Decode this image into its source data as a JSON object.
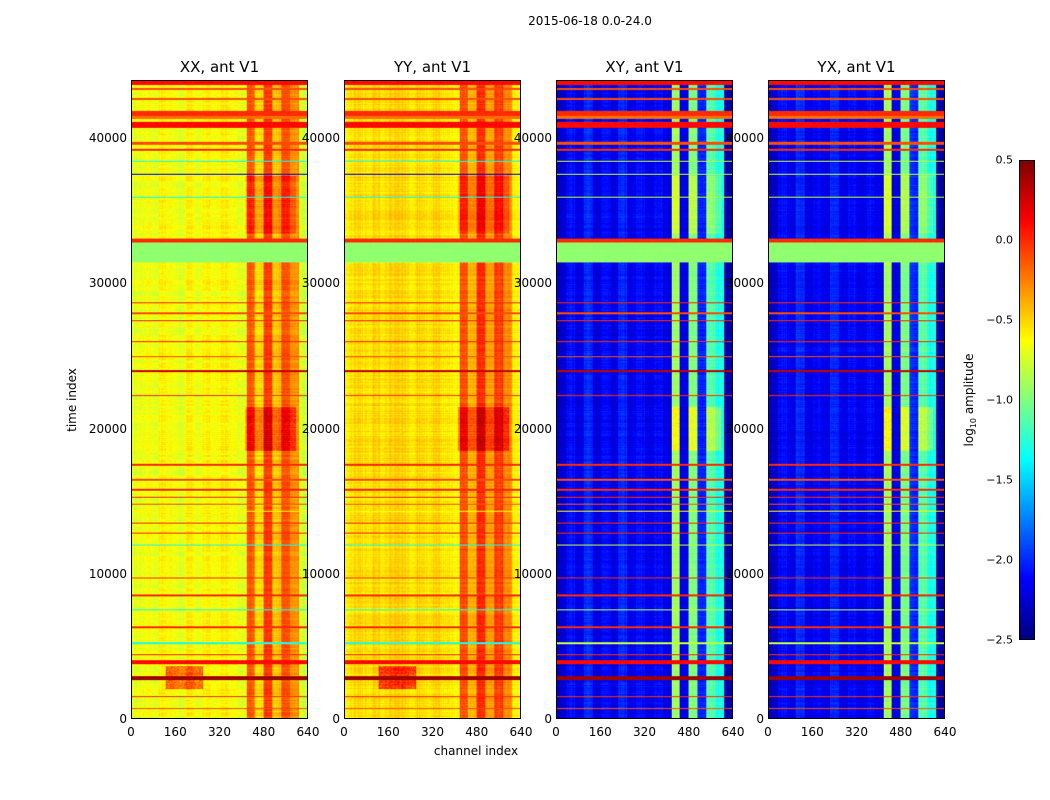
{
  "chart_data": {
    "type": "heatmap",
    "suptitle": "2015-06-18 0.0-24.0",
    "xlabel": "channel index",
    "ylabel": "time index",
    "xlim": [
      0,
      640
    ],
    "ylim": [
      0,
      44000
    ],
    "xticks": [
      "0",
      "160",
      "320",
      "480",
      "640"
    ],
    "xtick_values": [
      0,
      160,
      320,
      480,
      640
    ],
    "yticks": [
      "0",
      "10000",
      "20000",
      "30000",
      "40000"
    ],
    "ytick_values": [
      0,
      10000,
      20000,
      30000,
      40000
    ],
    "colorbar": {
      "label_main": "log",
      "label_sub": "10",
      "label_rest": " amplitude",
      "colormap": "jet",
      "range": [
        -2.5,
        0.5
      ],
      "ticks": [
        "0.5",
        "0.0",
        "−0.5",
        "−1.0",
        "−1.5",
        "−2.0",
        "−2.5"
      ],
      "tick_values": [
        0.5,
        0.0,
        -0.5,
        -1.0,
        -1.5,
        -2.0,
        -2.5
      ]
    },
    "panels": [
      {
        "title": "XX, ant V1",
        "kind": "par",
        "channel_profile": [
          -0.7,
          -0.65,
          -0.7,
          -0.6,
          -0.65,
          -0.7,
          -0.6,
          -0.65,
          -0.6,
          -0.65,
          -0.6,
          -0.65,
          -0.7,
          -0.15,
          -0.5,
          -0.05,
          -0.45,
          -0.1,
          -0.3,
          -0.75
        ]
      },
      {
        "title": "YY, ant V1",
        "kind": "par",
        "channel_profile": [
          -0.55,
          -0.5,
          -0.55,
          -0.5,
          -0.55,
          -0.5,
          -0.5,
          -0.55,
          -0.5,
          -0.55,
          -0.5,
          -0.55,
          -0.6,
          -0.1,
          -0.4,
          0.0,
          -0.35,
          -0.05,
          -0.3,
          -0.6
        ]
      },
      {
        "title": "XY, ant V1",
        "kind": "cross",
        "channel_profile": [
          -2.3,
          -2.1,
          -2.2,
          -2.0,
          -2.2,
          -2.1,
          -2.2,
          -2.0,
          -2.2,
          -2.1,
          -2.2,
          -2.1,
          -2.2,
          -0.9,
          -2.2,
          -1.0,
          -2.0,
          -1.1,
          -1.3,
          -2.4
        ]
      },
      {
        "title": "YX, ant V1",
        "kind": "cross",
        "channel_profile": [
          -2.3,
          -2.1,
          -2.2,
          -2.0,
          -2.2,
          -2.1,
          -2.2,
          -2.0,
          -2.2,
          -2.1,
          -2.2,
          -2.1,
          -2.2,
          -0.9,
          -2.2,
          -1.0,
          -2.0,
          -1.1,
          -1.3,
          -2.4
        ]
      }
    ],
    "row_events": [
      {
        "t": 43900,
        "w": 300,
        "par": 0.1,
        "cross": 0.1
      },
      {
        "t": 43500,
        "w": 150,
        "par": -0.1,
        "cross": -0.1
      },
      {
        "t": 42800,
        "w": 100,
        "par": -0.1,
        "cross": -0.1
      },
      {
        "t": 41800,
        "w": 300,
        "par": 0.0,
        "cross": 0.0
      },
      {
        "t": 41500,
        "w": 200,
        "par": -0.2,
        "cross": -0.2
      },
      {
        "t": 41000,
        "w": 400,
        "par": 0.1,
        "cross": 0.1
      },
      {
        "t": 39700,
        "w": 200,
        "par": -0.1,
        "cross": -0.1
      },
      {
        "t": 39300,
        "w": 150,
        "par": 0.0,
        "cross": 0.0
      },
      {
        "t": 38500,
        "w": 80,
        "par": -1.3,
        "cross": -0.8
      },
      {
        "t": 37600,
        "w": 80,
        "par": -2.2,
        "cross": -0.8
      },
      {
        "t": 36000,
        "w": 80,
        "par": -1.3,
        "cross": -0.8
      },
      {
        "t": 33000,
        "w": 250,
        "par": 0.0,
        "cross": 0.0
      },
      {
        "t": 32200,
        "w": 1400,
        "par": -0.95,
        "cross": -0.95
      },
      {
        "t": 28700,
        "w": 100,
        "par": 0.0,
        "cross": 0.0
      },
      {
        "t": 28000,
        "w": 100,
        "par": -0.1,
        "cross": -0.1
      },
      {
        "t": 27500,
        "w": 80,
        "par": 0.0,
        "cross": 0.0
      },
      {
        "t": 26000,
        "w": 80,
        "par": 0.0,
        "cross": 0.0
      },
      {
        "t": 25000,
        "w": 80,
        "par": -0.1,
        "cross": -0.1
      },
      {
        "t": 24000,
        "w": 100,
        "par": 0.3,
        "cross": 0.3
      },
      {
        "t": 22300,
        "w": 80,
        "par": 0.0,
        "cross": 0.0
      },
      {
        "t": 17500,
        "w": 150,
        "par": 0.0,
        "cross": 0.0
      },
      {
        "t": 16500,
        "w": 100,
        "par": -0.1,
        "cross": -0.1
      },
      {
        "t": 15800,
        "w": 150,
        "par": 0.0,
        "cross": 0.0
      },
      {
        "t": 15300,
        "w": 100,
        "par": 0.0,
        "cross": 0.0
      },
      {
        "t": 14800,
        "w": 80,
        "par": -0.1,
        "cross": -0.1
      },
      {
        "t": 14300,
        "w": 80,
        "par": -0.6,
        "cross": -0.6
      },
      {
        "t": 13500,
        "w": 100,
        "par": 0.0,
        "cross": 0.0
      },
      {
        "t": 12800,
        "w": 80,
        "par": 0.0,
        "cross": 0.0
      },
      {
        "t": 12000,
        "w": 80,
        "par": -1.3,
        "cross": -0.8
      },
      {
        "t": 9700,
        "w": 80,
        "par": 0.0,
        "cross": 0.0
      },
      {
        "t": 8500,
        "w": 100,
        "par": 0.0,
        "cross": 0.0
      },
      {
        "t": 7500,
        "w": 80,
        "par": -1.3,
        "cross": -0.8
      },
      {
        "t": 6300,
        "w": 80,
        "par": 0.0,
        "cross": 0.0
      },
      {
        "t": 5200,
        "w": 80,
        "par": -1.3,
        "cross": -0.8
      },
      {
        "t": 4400,
        "w": 80,
        "par": 0.0,
        "cross": 0.0
      },
      {
        "t": 3900,
        "w": 300,
        "par": 0.1,
        "cross": 0.1
      },
      {
        "t": 2800,
        "w": 250,
        "par": 0.4,
        "cross": 0.4
      },
      {
        "t": 1500,
        "w": 80,
        "par": 0.0,
        "cross": 0.0
      },
      {
        "t": 700,
        "w": 80,
        "par": -0.1,
        "cross": -0.1
      }
    ],
    "hotspots": [
      {
        "t0": 18500,
        "t1": 21500,
        "c0": 412,
        "c1": 600,
        "dv": 0.35
      },
      {
        "t0": 33500,
        "t1": 37500,
        "c0": 412,
        "c1": 600,
        "dv": 0.2
      },
      {
        "t0": 2000,
        "t1": 3600,
        "c0": 120,
        "c1": 260,
        "dv": 0.6
      }
    ]
  }
}
